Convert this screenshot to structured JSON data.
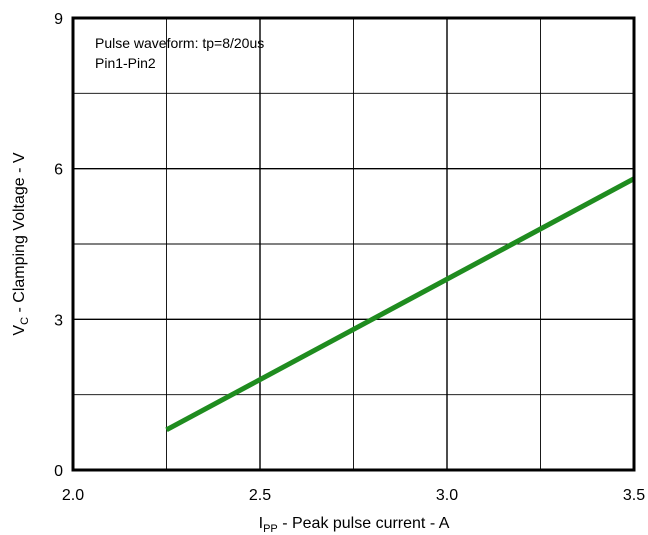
{
  "chart_data": {
    "type": "line",
    "xlabel": {
      "main": "I",
      "sub": "PP",
      "rest": " - Peak pulse current - A"
    },
    "ylabel": {
      "main": "V",
      "sub": "C",
      "rest": " - Clamping Voltage - V"
    },
    "xlim": [
      2.0,
      3.5
    ],
    "ylim": [
      0,
      9
    ],
    "x_ticks": [
      2.0,
      2.5,
      3.0,
      3.5
    ],
    "x_tick_labels": [
      "2.0",
      "2.5",
      "3.0",
      "3.5"
    ],
    "x_minor_ticks": [
      2.25,
      2.75,
      3.25
    ],
    "y_ticks": [
      0,
      3,
      6,
      9
    ],
    "y_tick_labels": [
      "0",
      "3",
      "6",
      "9"
    ],
    "y_minor_ticks": [
      1.5,
      4.5,
      7.5
    ],
    "grid": true,
    "annotations": [
      "Pulse waveform: tp=8/20us",
      "Pin1-Pin2"
    ],
    "series": [
      {
        "color": "#1f8c1f",
        "x": [
          2.25,
          3.5
        ],
        "y": [
          0.8,
          5.8
        ]
      }
    ]
  }
}
